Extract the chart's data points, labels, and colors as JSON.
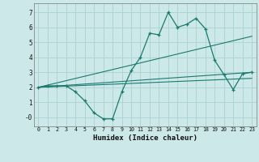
{
  "xlabel": "Humidex (Indice chaleur)",
  "background_color": "#cce8e8",
  "grid_color": "#afd4d4",
  "line_color": "#1a7a6e",
  "xlim": [
    -0.5,
    23.5
  ],
  "ylim": [
    -0.6,
    7.6
  ],
  "xticks": [
    0,
    1,
    2,
    3,
    4,
    5,
    6,
    7,
    8,
    9,
    10,
    11,
    12,
    13,
    14,
    15,
    16,
    17,
    18,
    19,
    20,
    21,
    22,
    23
  ],
  "yticks": [
    0,
    1,
    2,
    3,
    4,
    5,
    6,
    7
  ],
  "ytick_labels": [
    "-0",
    "1",
    "2",
    "3",
    "4",
    "5",
    "6",
    "7"
  ],
  "line1_x": [
    0,
    1,
    2,
    3,
    4,
    5,
    6,
    7,
    8,
    9,
    10,
    11,
    12,
    13,
    14,
    15,
    16,
    17,
    18,
    19,
    20,
    21,
    22,
    23
  ],
  "line1_y": [
    2.0,
    2.1,
    2.1,
    2.1,
    1.7,
    1.1,
    0.3,
    -0.1,
    -0.1,
    1.7,
    3.1,
    4.0,
    5.6,
    5.5,
    7.0,
    6.0,
    6.2,
    6.6,
    5.9,
    3.8,
    2.85,
    1.85,
    2.9,
    3.0
  ],
  "line2_x": [
    0,
    23
  ],
  "line2_y": [
    2.0,
    5.4
  ],
  "line3_x": [
    0,
    23
  ],
  "line3_y": [
    2.0,
    3.0
  ],
  "line4_x": [
    0,
    23
  ],
  "line4_y": [
    2.0,
    2.6
  ]
}
